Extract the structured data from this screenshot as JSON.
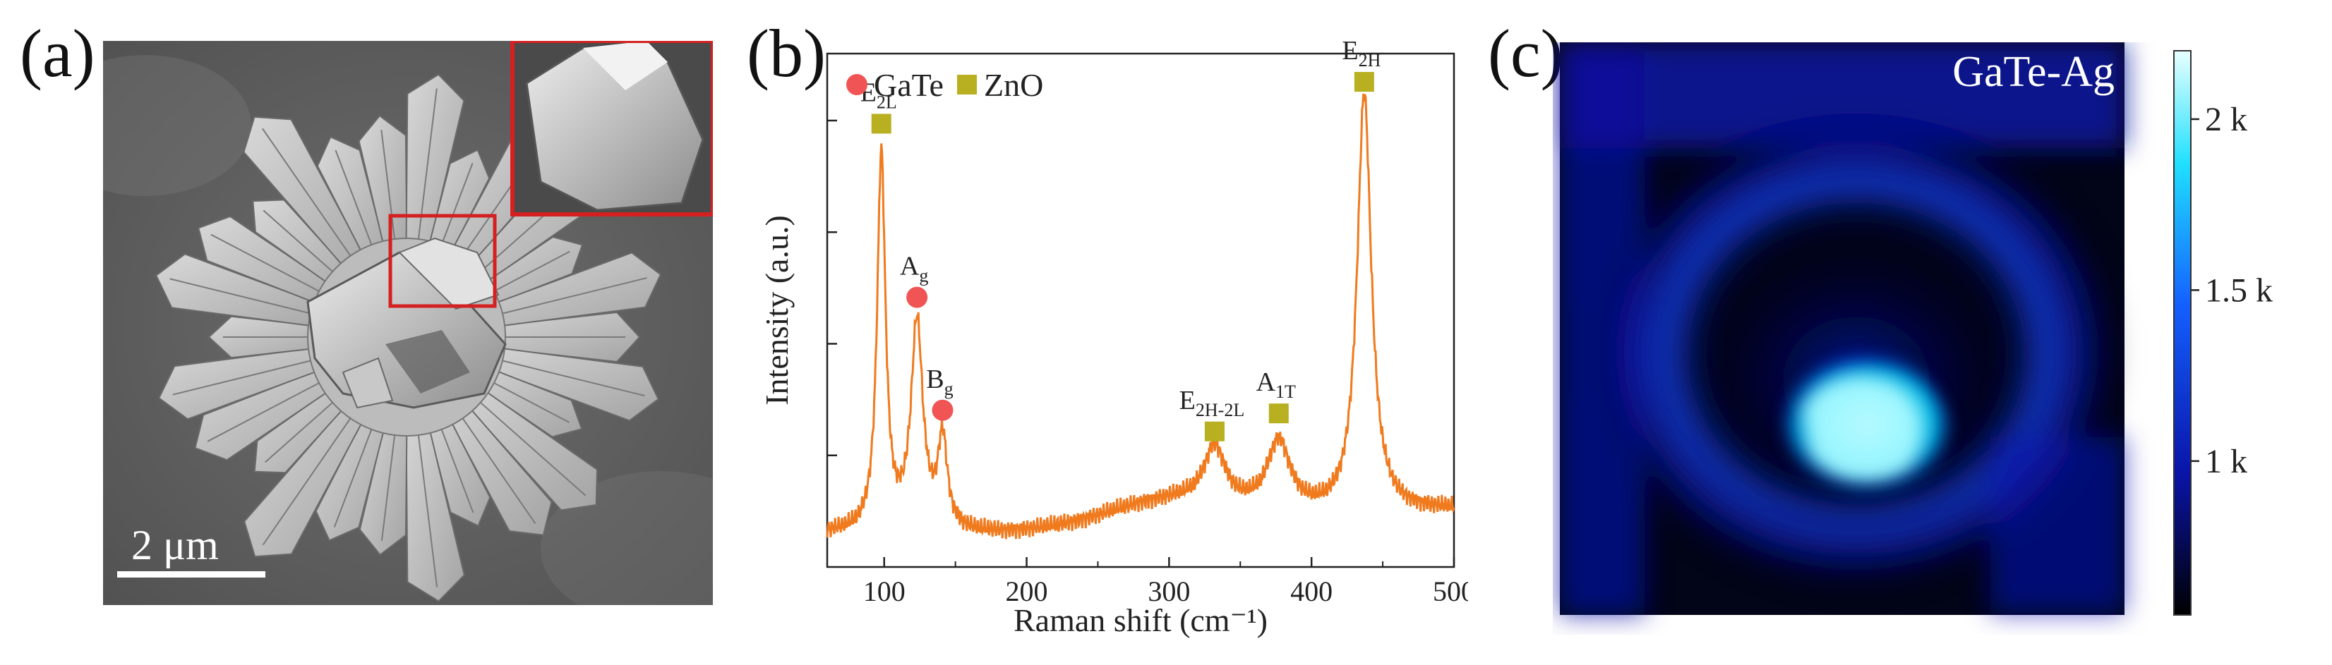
{
  "panels": {
    "a": {
      "label": "(a)",
      "scale_bar_text": "2 μm",
      "inset_frame_color": "#d42020"
    },
    "b": {
      "label": "(b)"
    },
    "c": {
      "label": "(c)",
      "map_title": "GaTe-Ag",
      "colorbar_ticks": [
        "2 k",
        "1.5 k",
        "1 k"
      ],
      "colorbar_tick_values": [
        2000,
        1500,
        1000
      ],
      "colorbar_range": [
        550,
        2200
      ],
      "colormap": [
        "#000000",
        "#0a14a8",
        "#1450ff",
        "#00d8f0",
        "#e8ffff"
      ]
    }
  },
  "chart_data": {
    "type": "line",
    "title": "",
    "xlabel": "Raman shift (cm⁻¹)",
    "ylabel": "Intensity (a.u.)",
    "xlim": [
      60,
      500
    ],
    "x_ticks": [
      100,
      200,
      300,
      400,
      500
    ],
    "grid": false,
    "line_color": "#f07a1e",
    "legend": {
      "placement": "top-left",
      "entries": [
        {
          "name": "GaTe",
          "marker": "circle",
          "color": "#f05454"
        },
        {
          "name": "ZnO",
          "marker": "square",
          "color": "#b8b020"
        }
      ]
    },
    "peaks": [
      {
        "x": 98,
        "label": "E",
        "sub": "2L",
        "material": "ZnO",
        "height": 0.84
      },
      {
        "x": 123,
        "label": "A",
        "sub": "g",
        "material": "GaTe",
        "height": 0.48
      },
      {
        "x": 141,
        "label": "B",
        "sub": "g",
        "material": "GaTe",
        "height": 0.23
      },
      {
        "x": 332,
        "label": "E",
        "sub": "2H-2L",
        "material": "ZnO",
        "height": 0.16
      },
      {
        "x": 377,
        "label": "A",
        "sub": "1T",
        "material": "ZnO",
        "height": 0.19
      },
      {
        "x": 437,
        "label": "E",
        "sub": "2H",
        "material": "ZnO",
        "height": 0.93
      }
    ]
  }
}
